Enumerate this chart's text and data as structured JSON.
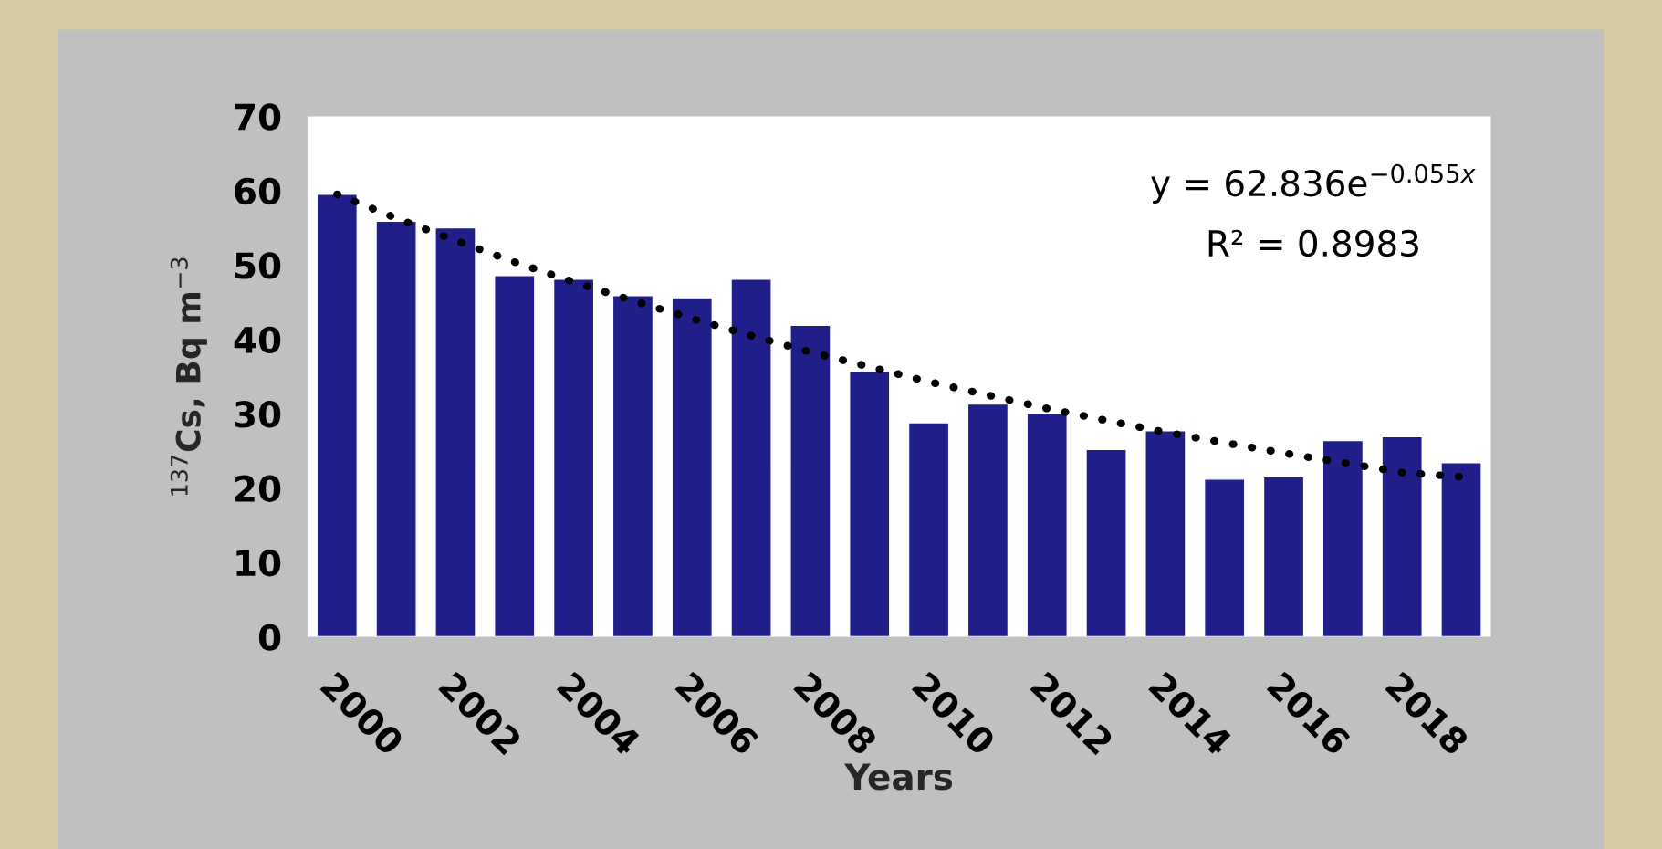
{
  "chart_data": {
    "type": "bar",
    "xlabel": "Years",
    "ylabel": "$^{137}$Cs, Bq m$^{−3}$",
    "categories": [
      "2000",
      null,
      "2002",
      null,
      "2004",
      null,
      "2006",
      null,
      "2008",
      null,
      "2010",
      null,
      "2012",
      null,
      "2014",
      null,
      "2016",
      null,
      "2018",
      null
    ],
    "series": [
      {
        "color": "#201f8a",
        "values": [
          59.5,
          55.9,
          55.0,
          48.6,
          48.1,
          45.9,
          45.6,
          48.1,
          41.9,
          35.7,
          28.8,
          31.3,
          30.0,
          25.2,
          27.7,
          21.2,
          21.5,
          26.4,
          26.9,
          23.4
        ]
      },
      {
        "type": "line",
        "color": "#000000",
        "line_style": "dotted",
        "values": [
          59.5,
          56.3,
          53.3,
          50.4,
          47.7,
          45.2,
          42.8,
          40.5,
          38.3,
          36.3,
          34.3,
          32.5,
          30.7,
          29.1,
          27.5,
          26.1,
          24.7,
          23.4,
          22.1,
          21.5
        ]
      }
    ],
    "ylim": [
      0,
      70
    ],
    "yticks": [
      0,
      10,
      20,
      30,
      40,
      50,
      60,
      70
    ],
    "annotations": [
      "y = 62.836e$^{−0.055x}$",
      "R² = 0.8983"
    ],
    "grid": false,
    "legend": false
  }
}
